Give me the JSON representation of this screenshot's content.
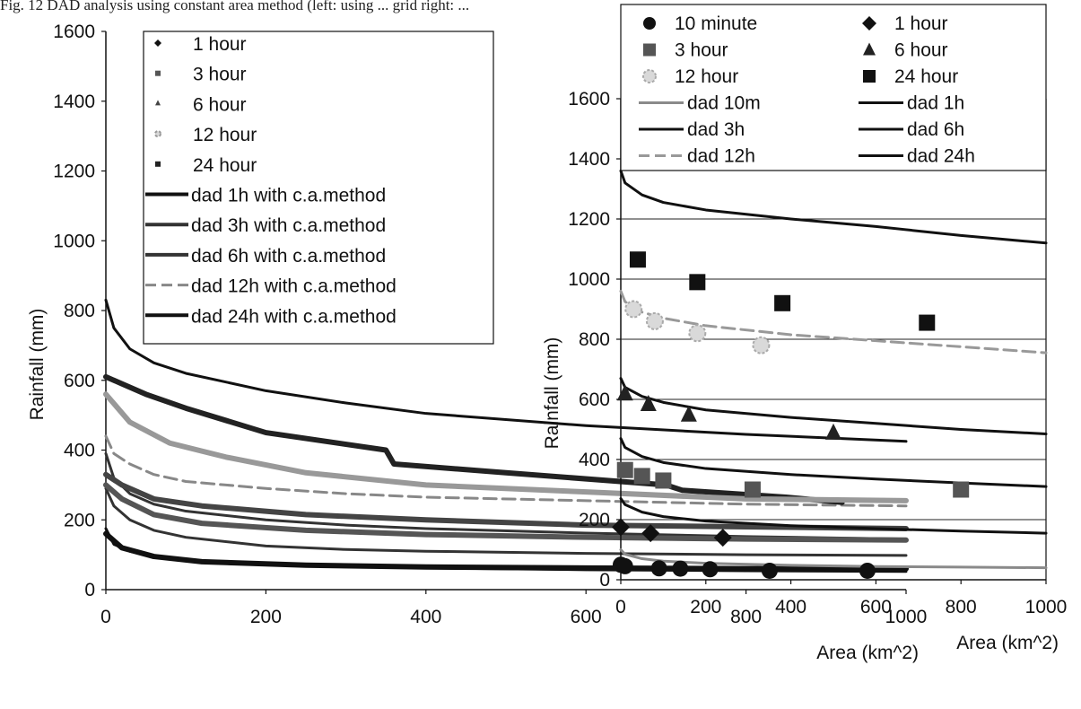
{
  "caption": "Fig. 12  DAD analysis using constant area method  (left: using ... grid right: ...",
  "chart_data": [
    {
      "type": "line",
      "xlabel": "Area (km^2)",
      "ylabel": "Rainfall (mm)",
      "xlim": [
        0,
        1000
      ],
      "ylim": [
        0,
        1600
      ],
      "xticks": [
        "0",
        "200",
        "400",
        "600",
        "800",
        "1000"
      ],
      "yticks": [
        "0",
        "200",
        "400",
        "600",
        "800",
        "1000",
        "1200",
        "1400",
        "1600"
      ],
      "grid": false,
      "legend_position": "top-right",
      "legend": [
        "1 hour",
        "3 hour",
        "6 hour",
        "12 hour",
        "24 hour",
        "dad 1h with c.a.method",
        "dad 3h with c.a.method",
        "dad 6h with c.a.method",
        "dad 12h with c.a.method",
        "dad 24h with c.a.method"
      ],
      "series": [
        {
          "name": "dad 1h with c.a.method",
          "color": "#111111",
          "style": "solid",
          "x": [
            0,
            10,
            30,
            60,
            100,
            200,
            300,
            400,
            600,
            800,
            1000
          ],
          "y": [
            175,
            130,
            110,
            95,
            85,
            72,
            66,
            62,
            57,
            54,
            52
          ]
        },
        {
          "name": "dad 3h with c.a.method",
          "color": "#333333",
          "style": "solid",
          "x": [
            0,
            10,
            30,
            60,
            100,
            200,
            300,
            400,
            600,
            800,
            1000
          ],
          "y": [
            290,
            240,
            200,
            170,
            150,
            125,
            115,
            110,
            104,
            100,
            98
          ]
        },
        {
          "name": "dad 6h with c.a.method",
          "color": "#333333",
          "style": "solid",
          "x": [
            0,
            10,
            30,
            60,
            100,
            200,
            300,
            400,
            600,
            800,
            1000
          ],
          "y": [
            390,
            320,
            275,
            245,
            225,
            200,
            185,
            175,
            162,
            152,
            145
          ]
        },
        {
          "name": "dad 12h with c.a.method",
          "color": "#888888",
          "style": "dashed",
          "x": [
            0,
            10,
            30,
            60,
            100,
            200,
            300,
            400,
            600,
            800,
            1000
          ],
          "y": [
            440,
            390,
            360,
            330,
            310,
            290,
            275,
            265,
            255,
            245,
            240
          ]
        },
        {
          "name": "dad 24h with c.a.method",
          "color": "#111111",
          "style": "solid",
          "x": [
            0,
            10,
            30,
            60,
            100,
            200,
            300,
            400,
            600,
            800,
            1000
          ],
          "y": [
            830,
            750,
            690,
            650,
            620,
            570,
            535,
            505,
            470,
            445,
            425
          ]
        },
        {
          "name": "24 hour",
          "color": "#222222",
          "style": "thick",
          "x": [
            0,
            20,
            50,
            100,
            200,
            350,
            360,
            500,
            700,
            720,
            850,
            920
          ],
          "y": [
            610,
            590,
            560,
            520,
            450,
            400,
            360,
            335,
            300,
            285,
            265,
            250
          ]
        },
        {
          "name": "12 hour",
          "color": "#999999",
          "style": "thick",
          "x": [
            0,
            30,
            80,
            150,
            250,
            400,
            600,
            800,
            1000
          ],
          "y": [
            560,
            480,
            420,
            380,
            335,
            300,
            280,
            260,
            255
          ]
        },
        {
          "name": "6 hour",
          "color": "#444444",
          "style": "thick",
          "x": [
            0,
            20,
            60,
            120,
            250,
            400,
            600,
            800,
            1000
          ],
          "y": [
            330,
            300,
            260,
            240,
            215,
            200,
            185,
            180,
            175
          ]
        },
        {
          "name": "3 hour",
          "color": "#555555",
          "style": "thick",
          "x": [
            0,
            20,
            60,
            120,
            250,
            400,
            600,
            800,
            1000
          ],
          "y": [
            300,
            260,
            215,
            190,
            170,
            158,
            150,
            145,
            142
          ]
        },
        {
          "name": "1 hour",
          "color": "#111111",
          "style": "thick",
          "x": [
            0,
            20,
            60,
            120,
            250,
            400,
            600,
            800,
            1000
          ],
          "y": [
            160,
            120,
            95,
            80,
            70,
            65,
            62,
            60,
            60
          ]
        }
      ]
    },
    {
      "type": "scatter",
      "xlabel": "Area (km^2)",
      "ylabel": "Rainfall (mm)",
      "xlim": [
        0,
        1000
      ],
      "ylim": [
        0,
        1600
      ],
      "xticks": [
        "0",
        "200",
        "400",
        "600",
        "800",
        "1000"
      ],
      "yticks": [
        "0",
        "200",
        "400",
        "600",
        "800",
        "1000",
        "1200",
        "1400",
        "1600"
      ],
      "grid": true,
      "legend_position": "top",
      "legend": [
        "10 minute",
        "1 hour",
        "3 hour",
        "6 hour",
        "12 hour",
        "24 hour",
        "dad 10m",
        "dad 1h",
        "dad 3h",
        "dad 6h",
        "dad 12h",
        "dad 24h"
      ],
      "points": [
        {
          "name": "10 minute",
          "marker": "circle",
          "color": "#111111",
          "x": [
            0,
            10,
            90,
            140,
            210,
            350,
            580
          ],
          "y": [
            50,
            45,
            38,
            37,
            35,
            30,
            30
          ]
        },
        {
          "name": "1 hour",
          "marker": "diamond",
          "color": "#111111",
          "x": [
            0,
            70,
            240
          ],
          "y": [
            175,
            155,
            140
          ]
        },
        {
          "name": "3 hour",
          "marker": "square",
          "color": "#555555",
          "x": [
            10,
            50,
            100,
            310,
            800
          ],
          "y": [
            365,
            345,
            330,
            300,
            300
          ]
        },
        {
          "name": "6 hour",
          "marker": "triangle",
          "color": "#222222",
          "x": [
            10,
            65,
            160,
            500
          ],
          "y": [
            620,
            585,
            550,
            490
          ]
        },
        {
          "name": "12 hour",
          "marker": "circle-light",
          "color": "#aaaaaa",
          "x": [
            30,
            80,
            180,
            330
          ],
          "y": [
            900,
            860,
            820,
            780
          ]
        },
        {
          "name": "24 hour",
          "marker": "square",
          "color": "#111111",
          "x": [
            40,
            180,
            380,
            720
          ],
          "y": [
            1065,
            990,
            920,
            855
          ]
        }
      ],
      "series": [
        {
          "name": "dad 10m",
          "color": "#8a8a8a",
          "style": "solid",
          "x": [
            0,
            10,
            50,
            100,
            200,
            400,
            600,
            800,
            1000
          ],
          "y": [
            100,
            85,
            70,
            62,
            55,
            48,
            44,
            42,
            40
          ]
        },
        {
          "name": "dad 1h",
          "color": "#111111",
          "style": "solid",
          "x": [
            0,
            10,
            50,
            100,
            200,
            400,
            600,
            800,
            1000
          ],
          "y": [
            270,
            250,
            225,
            210,
            195,
            180,
            170,
            162,
            155
          ]
        },
        {
          "name": "dad 3h",
          "color": "#111111",
          "style": "solid",
          "x": [
            0,
            10,
            50,
            100,
            200,
            400,
            600,
            800,
            1000
          ],
          "y": [
            470,
            440,
            410,
            390,
            370,
            350,
            335,
            322,
            310
          ]
        },
        {
          "name": "dad 6h",
          "color": "#111111",
          "style": "solid",
          "x": [
            0,
            10,
            50,
            100,
            200,
            400,
            600,
            800,
            1000
          ],
          "y": [
            670,
            640,
            610,
            590,
            565,
            540,
            520,
            500,
            485
          ]
        },
        {
          "name": "dad 12h",
          "color": "#999999",
          "style": "dashed",
          "x": [
            0,
            10,
            50,
            100,
            200,
            400,
            600,
            800,
            1000
          ],
          "y": [
            960,
            925,
            890,
            870,
            845,
            815,
            795,
            775,
            755
          ]
        },
        {
          "name": "dad 24h",
          "color": "#111111",
          "style": "solid",
          "x": [
            0,
            10,
            50,
            100,
            200,
            400,
            600,
            800,
            1000
          ],
          "y": [
            1360,
            1320,
            1280,
            1255,
            1230,
            1200,
            1175,
            1145,
            1120
          ]
        }
      ]
    }
  ]
}
